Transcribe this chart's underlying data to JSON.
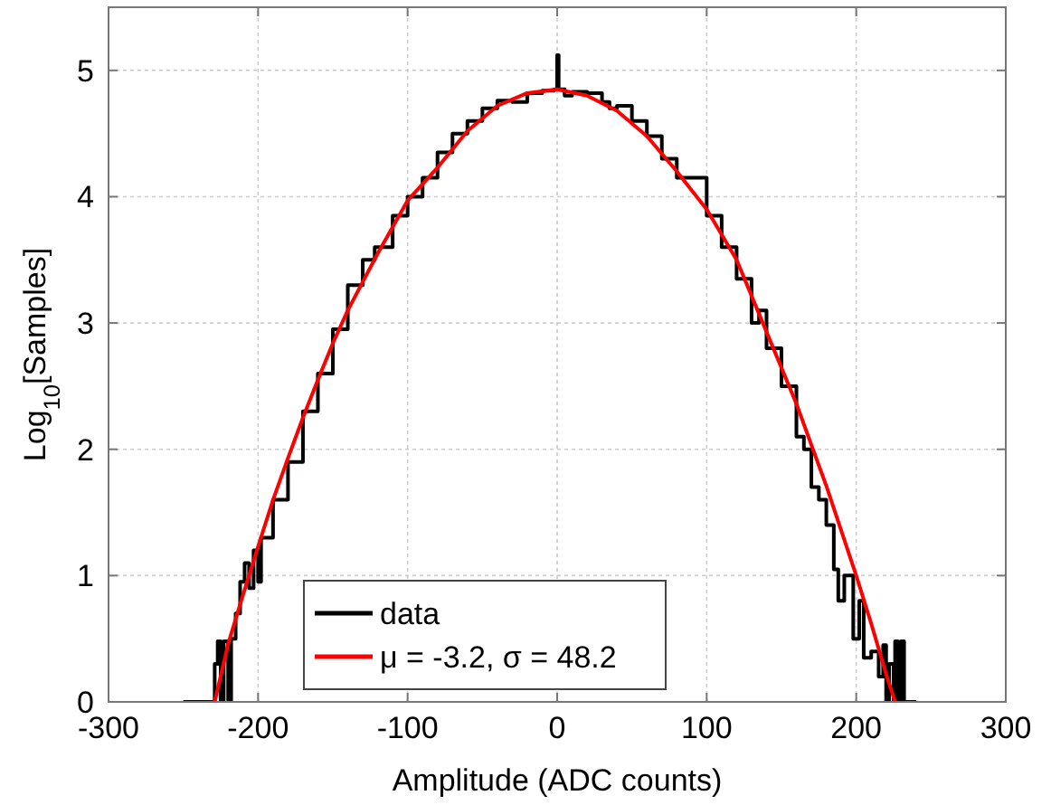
{
  "chart_data": {
    "type": "line",
    "xlabel": "Amplitude (ADC counts)",
    "ylabel": "Log$_{10}$[Samples]",
    "xlim": [
      -300,
      300
    ],
    "xticks": [
      -300,
      -200,
      -100,
      0,
      100,
      200,
      300
    ],
    "ylim": [
      0,
      5.5
    ],
    "yticks": [
      0,
      1,
      2,
      3,
      4,
      5
    ],
    "grid": true,
    "legend": "bottom",
    "line_style": "solid",
    "series": [
      {
        "name": "data",
        "type": "step",
        "color": "#000000",
        "x": [
          -250,
          -230,
          -229,
          -227,
          -225,
          -223,
          -220,
          -218,
          -215,
          -212,
          -209,
          -206,
          -203,
          -200,
          -198,
          -190,
          -180,
          -170,
          -160,
          -150,
          -140,
          -130,
          -122,
          -110,
          -100,
          -90,
          -80,
          -70,
          -60,
          -50,
          -40,
          -30,
          -20,
          -10,
          -2,
          0,
          1,
          5,
          10,
          20,
          30,
          35,
          40,
          50,
          60,
          70,
          80,
          100,
          110,
          120,
          130,
          135,
          140,
          150,
          160,
          165,
          170,
          175,
          180,
          185,
          188,
          192,
          195,
          198,
          202,
          205,
          210,
          215,
          218,
          220,
          222,
          225,
          226,
          228,
          230,
          232,
          240
        ],
        "values": [
          0,
          0,
          0.3,
          0.48,
          0,
          0.48,
          0,
          0.5,
          0.7,
          0.95,
          1.1,
          0.9,
          1.2,
          0.95,
          1.3,
          1.6,
          1.9,
          2.3,
          2.6,
          2.95,
          3.3,
          3.5,
          3.6,
          3.85,
          4.0,
          4.15,
          4.35,
          4.5,
          4.6,
          4.7,
          4.76,
          4.75,
          4.82,
          4.84,
          4.85,
          5.12,
          4.85,
          4.8,
          4.83,
          4.82,
          4.75,
          4.7,
          4.72,
          4.6,
          4.48,
          4.3,
          4.15,
          3.85,
          3.6,
          3.35,
          3.0,
          3.1,
          2.8,
          2.5,
          2.1,
          2.0,
          1.7,
          1.6,
          1.4,
          1.05,
          0.8,
          1.0,
          1.0,
          0.5,
          0.8,
          0.35,
          0.4,
          0.2,
          0.45,
          0,
          0.3,
          0,
          0.48,
          0,
          0.48,
          0,
          0
        ]
      },
      {
        "name": "μ = -3.2, σ = 48.2",
        "color": "#ff0000",
        "x": [
          -229,
          -220,
          -210,
          -200,
          -190,
          -180,
          -170,
          -160,
          -150,
          -140,
          -120,
          -100,
          -80,
          -60,
          -40,
          -20,
          0,
          20,
          40,
          60,
          80,
          100,
          120,
          140,
          160,
          180,
          200,
          210,
          220,
          226
        ],
        "values": [
          0,
          0.46,
          0.85,
          1.23,
          1.6,
          1.93,
          2.25,
          2.55,
          2.84,
          3.1,
          3.55,
          3.97,
          4.23,
          4.52,
          4.72,
          4.82,
          4.85,
          4.8,
          4.68,
          4.48,
          4.2,
          3.9,
          3.5,
          2.93,
          2.36,
          1.71,
          1.0,
          0.62,
          0.22,
          0
        ]
      }
    ]
  }
}
